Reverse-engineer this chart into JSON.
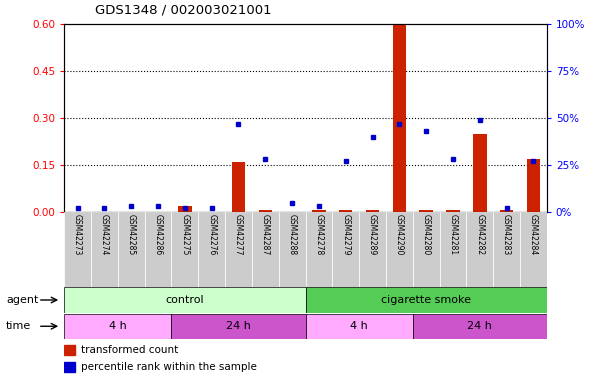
{
  "title": "GDS1348 / 002003021001",
  "samples": [
    "GSM42273",
    "GSM42274",
    "GSM42285",
    "GSM42286",
    "GSM42275",
    "GSM42276",
    "GSM42277",
    "GSM42287",
    "GSM42288",
    "GSM42278",
    "GSM42279",
    "GSM42289",
    "GSM42290",
    "GSM42280",
    "GSM42281",
    "GSM42282",
    "GSM42283",
    "GSM42284"
  ],
  "red_bars": [
    0.0,
    0.0,
    0.0,
    0.0,
    0.02,
    0.0,
    0.16,
    0.005,
    0.0,
    0.005,
    0.005,
    0.005,
    0.6,
    0.005,
    0.005,
    0.25,
    0.005,
    0.17
  ],
  "blue_dots": [
    2,
    2,
    3,
    3,
    2,
    2,
    47,
    28,
    5,
    3,
    27,
    40,
    47,
    43,
    28,
    49,
    2,
    27
  ],
  "ylim_left": [
    0,
    0.6
  ],
  "ylim_right": [
    0,
    100
  ],
  "yticks_left": [
    0,
    0.15,
    0.3,
    0.45,
    0.6
  ],
  "yticks_right": [
    0,
    25,
    50,
    75,
    100
  ],
  "agent_groups": [
    {
      "label": "control",
      "start": 0,
      "end": 9,
      "color": "#ccffcc"
    },
    {
      "label": "cigarette smoke",
      "start": 9,
      "end": 18,
      "color": "#55cc55"
    }
  ],
  "time_groups": [
    {
      "label": "4 h",
      "start": 0,
      "end": 4,
      "color": "#ffaaff"
    },
    {
      "label": "24 h",
      "start": 4,
      "end": 9,
      "color": "#cc55cc"
    },
    {
      "label": "4 h",
      "start": 9,
      "end": 13,
      "color": "#ffaaff"
    },
    {
      "label": "24 h",
      "start": 13,
      "end": 18,
      "color": "#cc55cc"
    }
  ],
  "bar_color": "#cc2200",
  "dot_color": "#0000cc",
  "background_color": "#ffffff",
  "legend_red": "transformed count",
  "legend_blue": "percentile rank within the sample"
}
